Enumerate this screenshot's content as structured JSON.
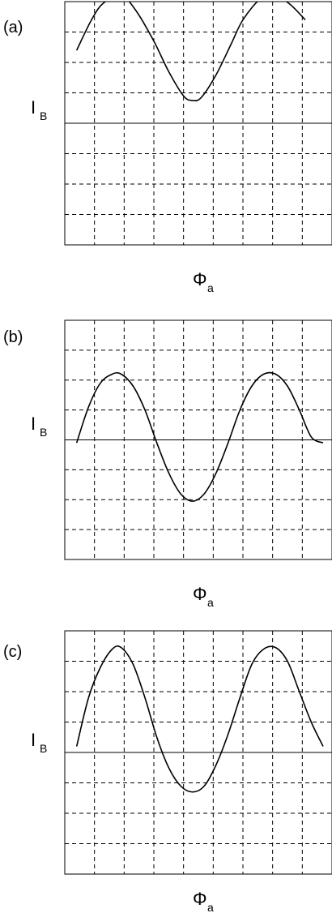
{
  "chart_data": [
    {
      "type": "line",
      "panel_label": "(a)",
      "xlabel": "Φ",
      "xlabel_sub": "a",
      "ylabel": "I",
      "ylabel_sub": "B",
      "xlim": [
        0,
        9
      ],
      "ylim": [
        -4,
        4
      ],
      "grid": true,
      "grid_style": "dashed",
      "series": [
        {
          "x": [
            0.4,
            0.9,
            1.3,
            1.9,
            2.4,
            3.0,
            3.5,
            4.0,
            4.3,
            4.6,
            5.1,
            5.6,
            6.0,
            6.6,
            7.1,
            7.6,
            8.1
          ],
          "y": [
            2.4,
            3.4,
            3.95,
            4.2,
            3.7,
            2.7,
            1.7,
            0.9,
            0.75,
            0.85,
            1.6,
            2.6,
            3.4,
            4.1,
            4.2,
            3.9,
            3.4
          ]
        }
      ]
    },
    {
      "type": "line",
      "panel_label": "(b)",
      "xlabel": "Φ",
      "xlabel_sub": "a",
      "ylabel": "I",
      "ylabel_sub": "B",
      "xlim": [
        0,
        9
      ],
      "ylim": [
        -4,
        4
      ],
      "grid": true,
      "grid_style": "dashed",
      "series": [
        {
          "x": [
            0.4,
            0.8,
            1.2,
            1.6,
            1.9,
            2.3,
            2.7,
            3.1,
            3.5,
            3.9,
            4.3,
            4.7,
            5.1,
            5.5,
            5.9,
            6.3,
            6.7,
            7.1,
            7.5,
            7.9,
            8.3,
            8.7
          ],
          "y": [
            -0.1,
            1.1,
            1.9,
            2.2,
            2.2,
            1.8,
            1.0,
            -0.1,
            -1.1,
            -1.8,
            -2.05,
            -1.8,
            -1.1,
            -0.1,
            1.0,
            1.8,
            2.2,
            2.2,
            1.8,
            1.0,
            0.1,
            -0.1
          ]
        }
      ]
    },
    {
      "type": "line",
      "panel_label": "(c)",
      "xlabel": "Φ",
      "xlabel_sub": "a",
      "ylabel": "I",
      "ylabel_sub": "B",
      "xlim": [
        0,
        9
      ],
      "ylim": [
        -4,
        4
      ],
      "grid": true,
      "grid_style": "dashed",
      "series": [
        {
          "x": [
            0.4,
            0.8,
            1.2,
            1.6,
            1.9,
            2.3,
            2.7,
            3.1,
            3.5,
            3.9,
            4.3,
            4.7,
            5.1,
            5.5,
            5.9,
            6.3,
            6.7,
            7.1,
            7.5,
            7.9,
            8.3,
            8.7
          ],
          "y": [
            0.2,
            1.8,
            2.8,
            3.4,
            3.45,
            2.9,
            1.8,
            0.5,
            -0.5,
            -1.1,
            -1.3,
            -1.1,
            -0.4,
            0.6,
            1.8,
            2.9,
            3.4,
            3.45,
            3.0,
            2.0,
            1.0,
            0.2
          ]
        }
      ]
    }
  ]
}
